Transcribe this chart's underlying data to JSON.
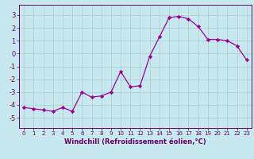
{
  "x": [
    0,
    1,
    2,
    3,
    4,
    5,
    6,
    7,
    8,
    9,
    10,
    11,
    12,
    13,
    14,
    15,
    16,
    17,
    18,
    19,
    20,
    21,
    22,
    23
  ],
  "y": [
    -4.2,
    -4.3,
    -4.4,
    -4.5,
    -4.2,
    -4.5,
    -3.0,
    -3.4,
    -3.3,
    -3.0,
    -1.4,
    -2.6,
    -2.5,
    -0.2,
    1.3,
    2.8,
    2.9,
    2.7,
    2.1,
    1.1,
    1.1,
    1.0,
    0.6,
    -0.5
  ],
  "xlim": [
    -0.5,
    23.5
  ],
  "ylim": [
    -5.8,
    3.8
  ],
  "yticks": [
    -5,
    -4,
    -3,
    -2,
    -1,
    0,
    1,
    2,
    3
  ],
  "xticks": [
    0,
    1,
    2,
    3,
    4,
    5,
    6,
    7,
    8,
    9,
    10,
    11,
    12,
    13,
    14,
    15,
    16,
    17,
    18,
    19,
    20,
    21,
    22,
    23
  ],
  "xlabel": "Windchill (Refroidissement éolien,°C)",
  "line_color": "#990099",
  "marker": "D",
  "marker_size": 2.2,
  "bg_color": "#c8e8f0",
  "grid_color": "#aacccc",
  "label_color": "#660066",
  "tick_color": "#660066",
  "xlabel_fontsize": 6.0,
  "xtick_fontsize": 5.0,
  "ytick_fontsize": 6.0
}
